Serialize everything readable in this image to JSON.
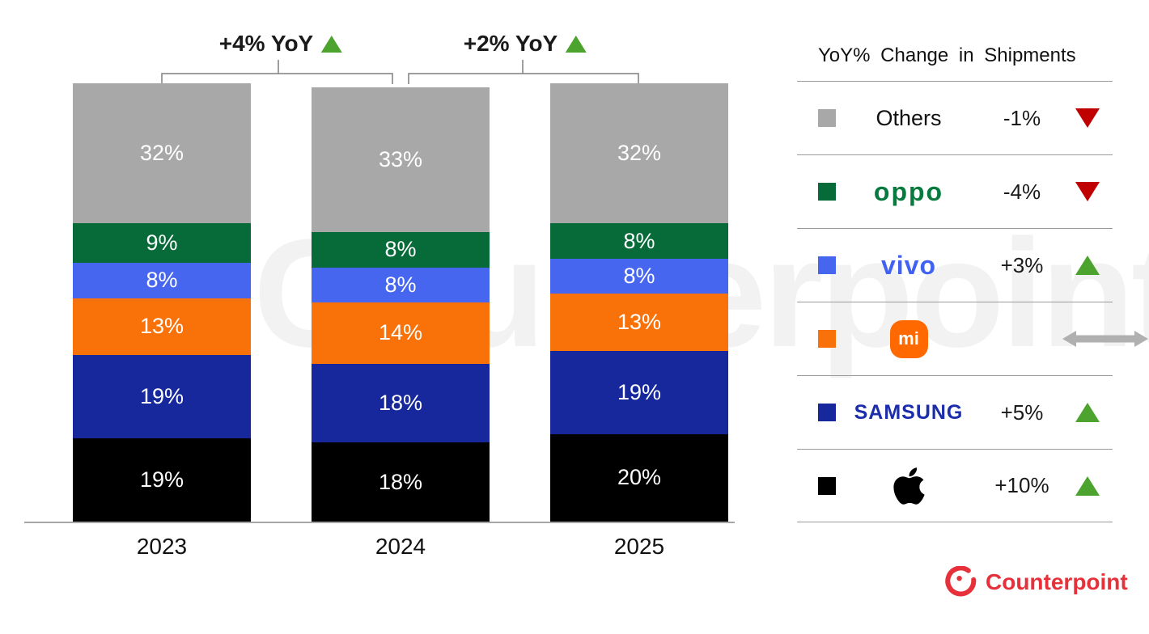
{
  "watermark": "Counterpoint",
  "annotations": [
    {
      "label": "+4% YoY",
      "arrow": "up"
    },
    {
      "label": "+2% YoY",
      "arrow": "up"
    }
  ],
  "chart_data": {
    "type": "bar",
    "stacked": true,
    "categories": [
      "2023",
      "2024",
      "2025"
    ],
    "series": [
      {
        "name": "Apple",
        "color": "#000000",
        "values": [
          19,
          18,
          20
        ]
      },
      {
        "name": "Samsung",
        "color": "#16289b",
        "values": [
          19,
          18,
          19
        ]
      },
      {
        "name": "Xiaomi",
        "color": "#f87209",
        "values": [
          13,
          14,
          13
        ]
      },
      {
        "name": "vivo",
        "color": "#4766f0",
        "values": [
          8,
          8,
          8
        ]
      },
      {
        "name": "OPPO",
        "color": "#066b38",
        "values": [
          9,
          8,
          8
        ]
      },
      {
        "name": "Others",
        "color": "#a8a8a8",
        "values": [
          32,
          33,
          32
        ]
      }
    ],
    "value_suffix": "%",
    "ylim": [
      0,
      100
    ],
    "grid": false,
    "legend_position": "right",
    "annotations": [
      "+4% YoY between 2023 and 2024",
      "+2% YoY between 2024 and 2025"
    ]
  },
  "legend": {
    "title": "YoY% Change in Shipments",
    "rows": [
      {
        "brand": "Others",
        "logo_text": "Others",
        "change": "-1%",
        "direction": "down"
      },
      {
        "brand": "OPPO",
        "logo_text": "oppo",
        "change": "-4%",
        "direction": "down"
      },
      {
        "brand": "vivo",
        "logo_text": "vivo",
        "change": "+3%",
        "direction": "up"
      },
      {
        "brand": "Xiaomi",
        "logo_text": "mi",
        "change": "",
        "direction": "flat"
      },
      {
        "brand": "Samsung",
        "logo_text": "SAMSUNG",
        "change": "+5%",
        "direction": "up"
      },
      {
        "brand": "Apple",
        "logo_text": "",
        "change": "+10%",
        "direction": "up"
      }
    ]
  },
  "branding": {
    "name": "Counterpoint"
  },
  "colors": {
    "up_arrow": "#4ca32d",
    "down_arrow": "#c00000",
    "flat_arrow": "#b0b0b0",
    "baseline": "#a6a6a6",
    "brand_red": "#e6313b"
  }
}
